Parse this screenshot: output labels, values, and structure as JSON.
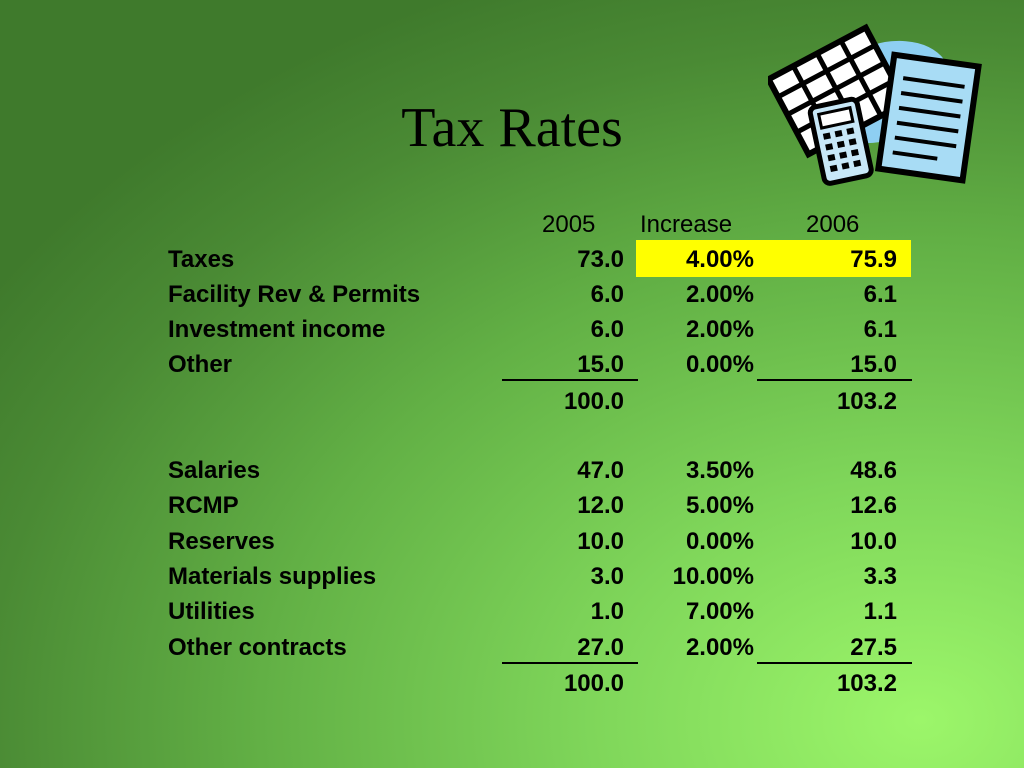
{
  "title": "Tax Rates",
  "headers": {
    "y2005": "2005",
    "increase": "Increase",
    "y2006": "2006"
  },
  "revenue": [
    {
      "label": "Taxes",
      "y2005": "73.0",
      "increase": "4.00%",
      "y2006": "75.9"
    },
    {
      "label": "Facility Rev & Permits",
      "y2005": "6.0",
      "increase": "2.00%",
      "y2006": "6.1"
    },
    {
      "label": "Investment income",
      "y2005": "6.0",
      "increase": "2.00%",
      "y2006": "6.1"
    },
    {
      "label": "Other",
      "y2005": "15.0",
      "increase": "0.00%",
      "y2006": "15.0"
    }
  ],
  "revenue_total": {
    "y2005": "100.0",
    "y2006": "103.2"
  },
  "expenses": [
    {
      "label": "Salaries",
      "y2005": "47.0",
      "increase": "3.50%",
      "y2006": "48.6"
    },
    {
      "label": "RCMP",
      "y2005": "12.0",
      "increase": "5.00%",
      "y2006": "12.6"
    },
    {
      "label": "Reserves",
      "y2005": "10.0",
      "increase": "0.00%",
      "y2006": "10.0"
    },
    {
      "label": "Materials supplies",
      "y2005": "3.0",
      "increase": "10.00%",
      "y2006": "3.3"
    },
    {
      "label": "Utilities",
      "y2005": "1.0",
      "increase": "7.00%",
      "y2006": "1.1"
    },
    {
      "label": "Other contracts",
      "y2005": "27.0",
      "increase": "2.00%",
      "y2006": "27.5"
    }
  ],
  "expenses_total": {
    "y2005": "100.0",
    "y2006": "103.2"
  },
  "colors": {
    "highlight": "#ffff00",
    "background_light": "#9cf66a",
    "background_dark": "#3f7a2c"
  },
  "clipart_icon": "calculator-spreadsheet-icon"
}
